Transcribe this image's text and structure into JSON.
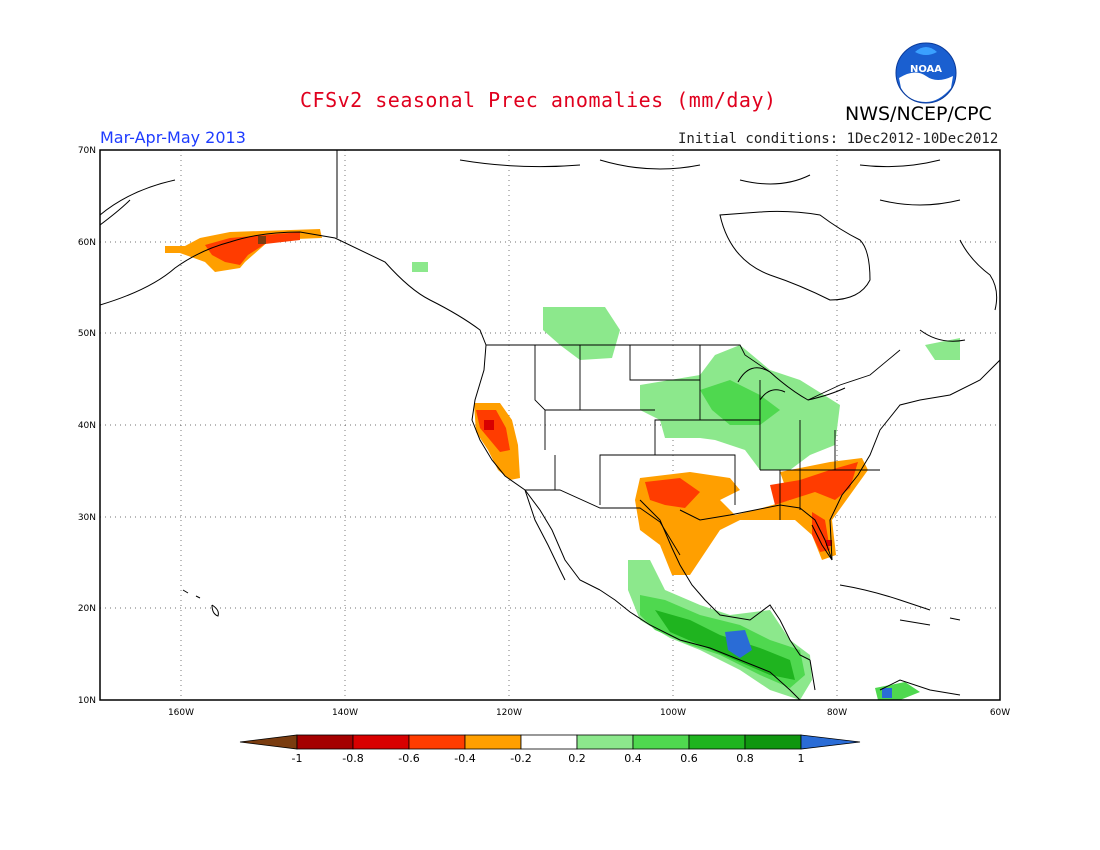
{
  "header": {
    "title": "CFSv2 seasonal Prec anomalies (mm/day)",
    "agency": "NWS/NCEP/CPC",
    "season": "Mar-Apr-May 2013",
    "initial_conditions": "Initial conditions: 1Dec2012-10Dec2012",
    "logo_text": "NOAA"
  },
  "map": {
    "lat_labels": [
      "70N",
      "60N",
      "50N",
      "40N",
      "30N",
      "20N",
      "10N"
    ],
    "lon_labels": [
      "160W",
      "140W",
      "120W",
      "100W",
      "80W",
      "60W"
    ]
  },
  "colorbar": {
    "labels": [
      "-1",
      "-0.8",
      "-0.6",
      "-0.4",
      "-0.2",
      "0.2",
      "0.4",
      "0.6",
      "0.8",
      "1"
    ],
    "colors": {
      "lt_-1": "#7a3c10",
      "-1_-0.8": "#a40000",
      "-0.8_-0.6": "#d80000",
      "-0.6_-0.4": "#ff3c00",
      "-0.4_-0.2": "#ff9f00",
      "-0.2_0.2": "#ffffff",
      "0.2_0.4": "#8ce88c",
      "0.4_0.6": "#4fd84f",
      "0.6_0.8": "#1fb41f",
      "0.8_1": "#0f960f",
      "gt_1": "#2a6cd6"
    }
  }
}
